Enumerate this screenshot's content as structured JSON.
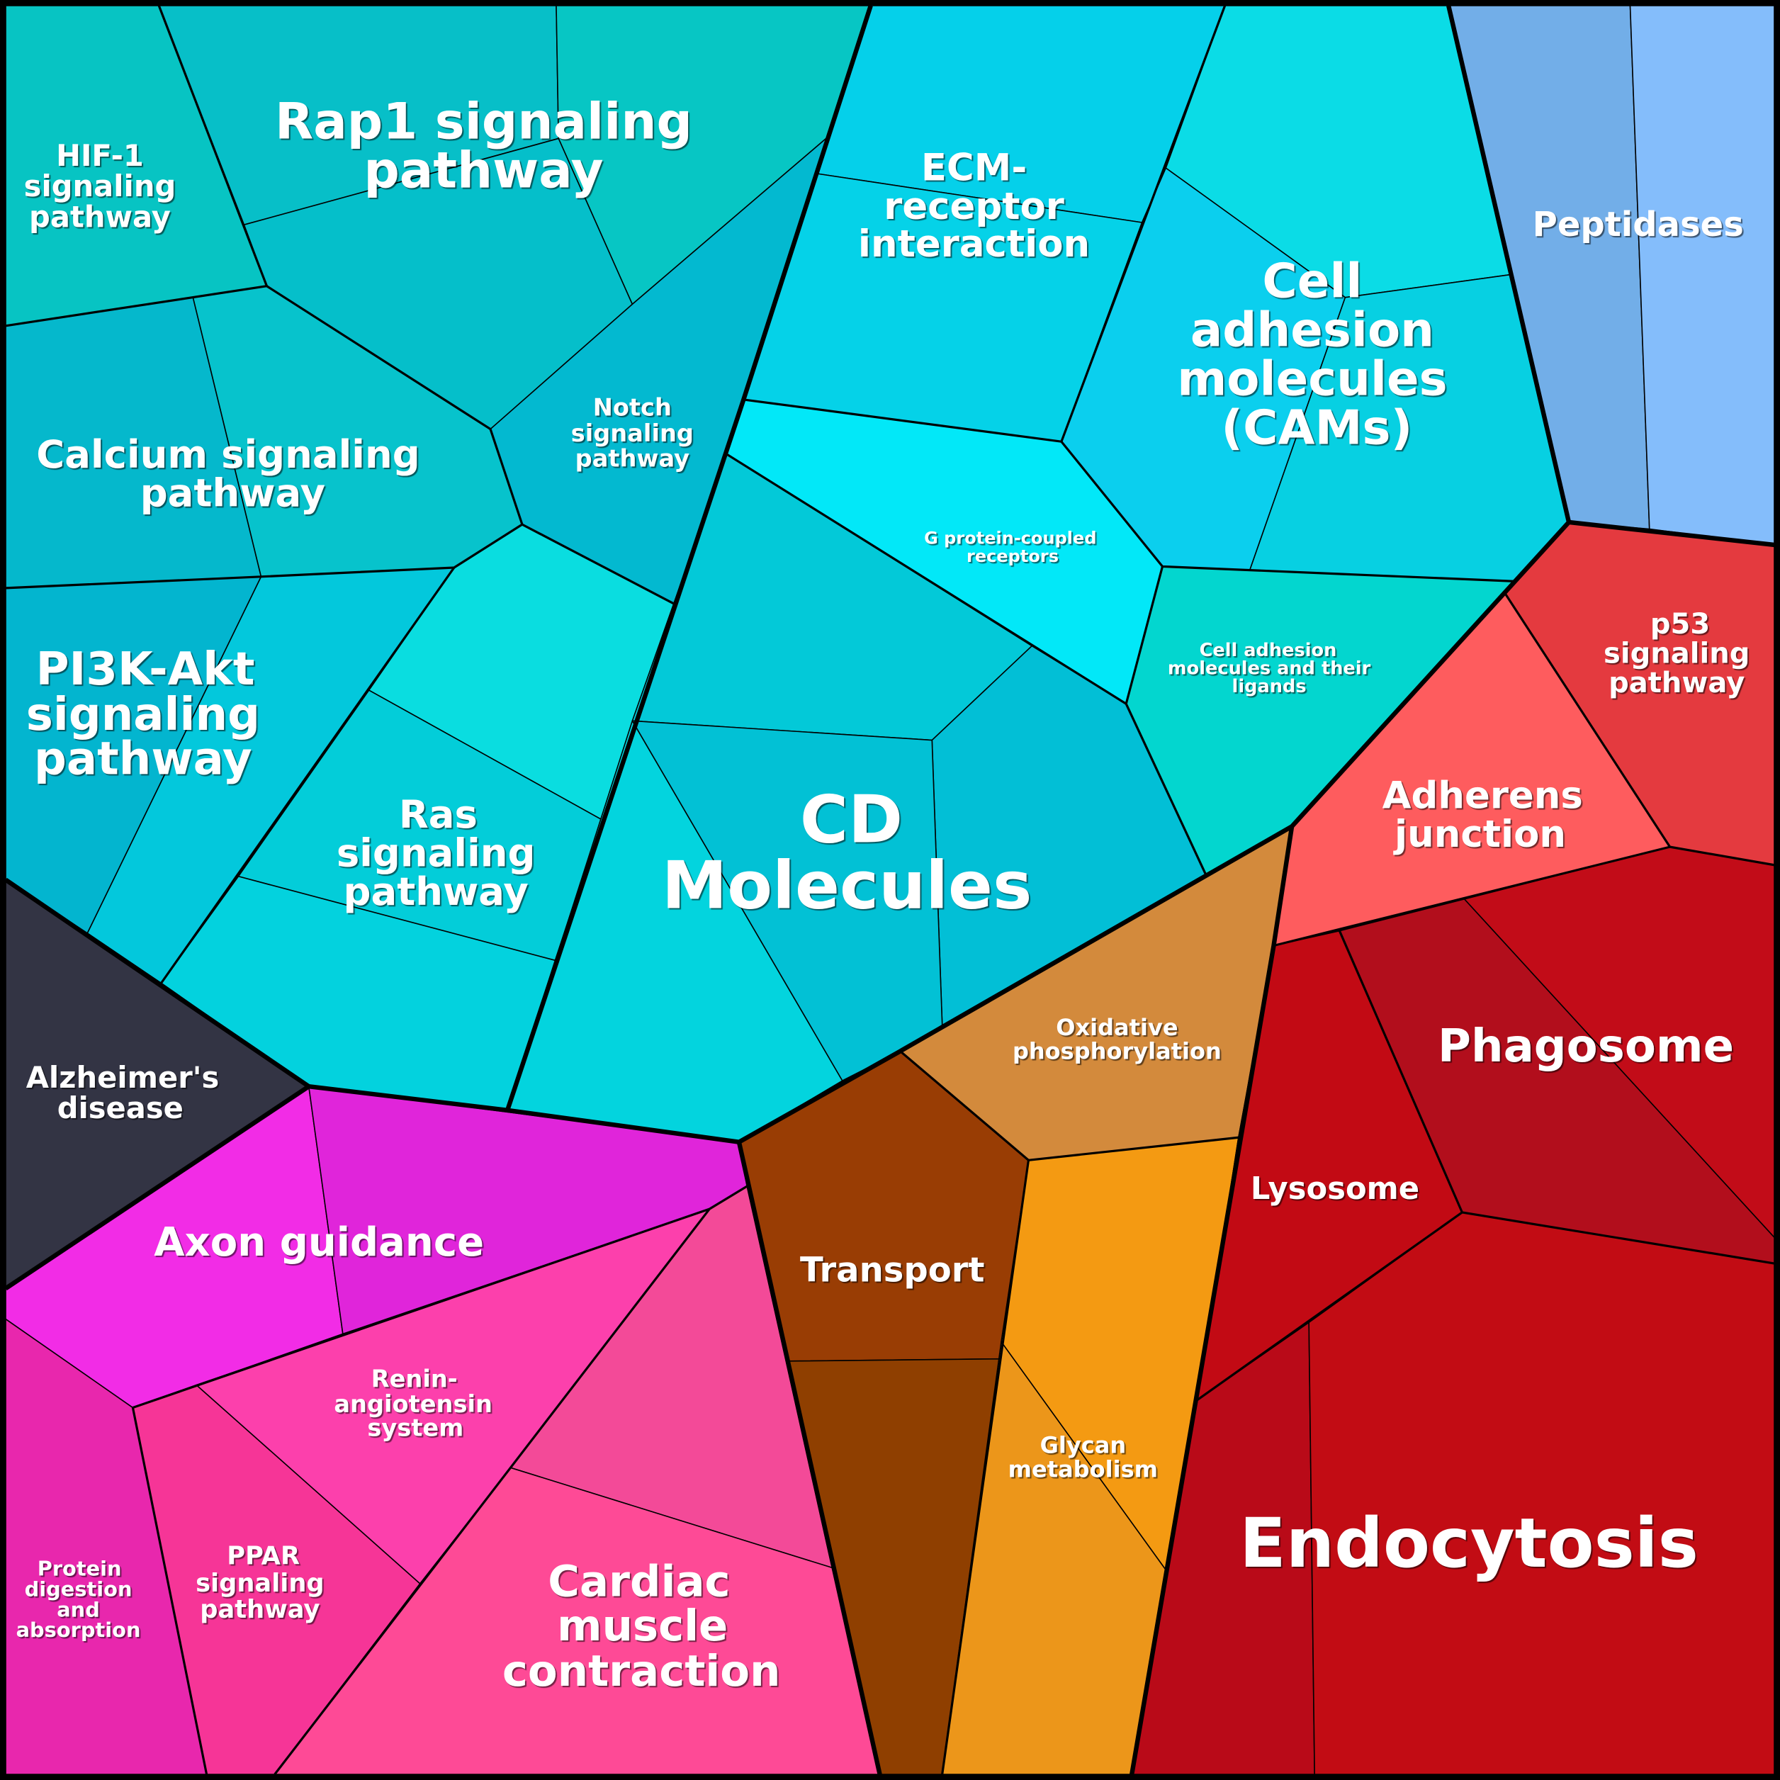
{
  "labels": {
    "hif1": [
      "HIF-1",
      "signaling",
      "pathway"
    ],
    "rap1": [
      "Rap1 signaling",
      "pathway"
    ],
    "notch": [
      "Notch",
      "signaling",
      "pathway"
    ],
    "calcium": [
      "Calcium signaling",
      "pathway"
    ],
    "pi3k": [
      "PI3K-Akt",
      "signaling",
      "pathway"
    ],
    "ras": [
      "Ras",
      "signaling",
      "pathway"
    ],
    "ecm": [
      "ECM-",
      "receptor",
      "interaction"
    ],
    "cams": [
      "Cell",
      "adhesion",
      "molecules",
      "(CAMs)"
    ],
    "peptidases": [
      "Peptidases"
    ],
    "gpcr": [
      "G protein-coupled",
      "receptors"
    ],
    "cam_ligands": [
      "Cell adhesion",
      "molecules and their",
      "ligands"
    ],
    "cd": [
      "CD",
      "Molecules"
    ],
    "p53": [
      "p53",
      "signaling",
      "pathway"
    ],
    "adherens": [
      "Adherens",
      "junction"
    ],
    "phagosome": [
      "Phagosome"
    ],
    "lysosome": [
      "Lysosome"
    ],
    "oxidative": [
      "Oxidative",
      "phosphorylation"
    ],
    "transport": [
      "Transport"
    ],
    "glycan": [
      "Glycan",
      "metabolism"
    ],
    "endocytosis": [
      "Endocytosis"
    ],
    "alzheimer": [
      "Alzheimer's",
      "disease"
    ],
    "axon": [
      "Axon guidance"
    ],
    "renin": [
      "Renin-",
      "angiotensin",
      "system"
    ],
    "ppar": [
      "PPAR",
      "signaling",
      "pathway"
    ],
    "protein": [
      "Protein",
      "digestion",
      "and",
      "absorption"
    ],
    "cardiac": [
      "Cardiac",
      "muscle",
      "contraction"
    ]
  },
  "colors": {
    "hif1": "#07c4c3",
    "rap1_a": "#07bfc8",
    "rap1_b": "#07c6c4",
    "rap1_c": "#05bfca",
    "notch": "#03b9d0",
    "calcium_a": "#05b8cc",
    "calcium_b": "#07c3cc",
    "pi3k_a": "#03b5cf",
    "pi3k_b": "#03c8dc",
    "ras_a": "#0adde0",
    "ras_b": "#03cdd9",
    "ras_c": "#03d2de",
    "ecm_a": "#05d0ea",
    "ecm_b": "#05d2e8",
    "cams_a": "#0bdce6",
    "cams_b": "#0bcfee",
    "cams_c": "#07d0e2",
    "gpcr": "#02e8f8",
    "cam_ligands": "#03d6cf",
    "cd_a": "#03c9d8",
    "cd_b": "#02bfd6",
    "cd_c": "#02c1d5",
    "cd_d": "#03d4de",
    "alzheimer": "#333444",
    "axon_a": "#f22ce6",
    "axon_b": "#e025da",
    "protein": "#e827ad",
    "ppar": "#f63597",
    "renin": "#fc40ac",
    "cardiac_a": "#f34a98",
    "cardiac_b": "#fe4a96",
    "transport_a": "#993d04",
    "transport_b": "#8f3f00",
    "oxidative": "#d38a3c",
    "glycan_a": "#f49a12",
    "glycan_b": "#ec961a",
    "peptidases_a": "#72aee8",
    "peptidases_b": "#84bdfb",
    "p53": "#e43a3f",
    "adherens": "#fe5c5e",
    "phagosome_a": "#b20e1c",
    "phagosome_b": "#c20c18",
    "lysosome": "#c20a14",
    "endocytosis_a": "#b90a18",
    "endocytosis_b": "#c20c14"
  }
}
